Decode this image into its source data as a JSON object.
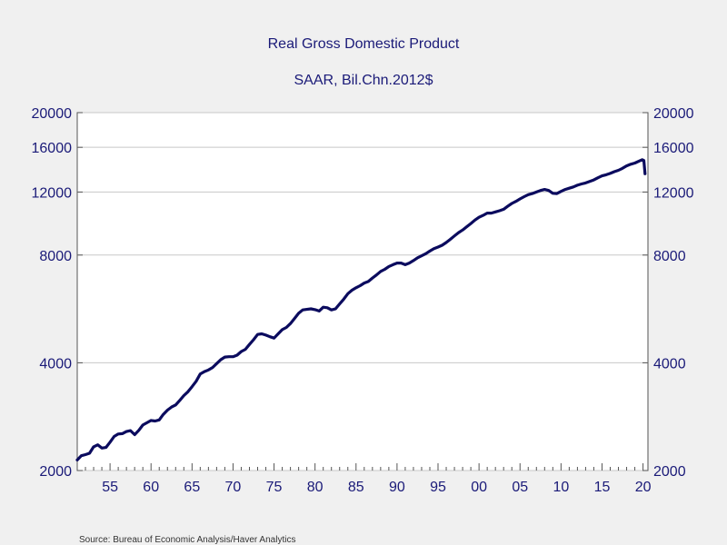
{
  "chart_data": {
    "type": "line",
    "title": "Real Gross Domestic Product",
    "subtitle": "SAAR, Bil.Chn.2012$",
    "source": "Source:  Bureau of Economic Analysis/Haver Analytics",
    "y_scale": "log",
    "ylim": [
      2000,
      20000
    ],
    "xlim": [
      1951.0,
      2020.6
    ],
    "y_ticks": [
      {
        "value": 2000,
        "label": "2000"
      },
      {
        "value": 4000,
        "label": "4000"
      },
      {
        "value": 8000,
        "label": "8000"
      },
      {
        "value": 12000,
        "label": "12000"
      },
      {
        "value": 16000,
        "label": "16000"
      },
      {
        "value": 20000,
        "label": "20000"
      }
    ],
    "x_ticks": [
      {
        "value": 1955,
        "label": "55"
      },
      {
        "value": 1960,
        "label": "60"
      },
      {
        "value": 1965,
        "label": "65"
      },
      {
        "value": 1970,
        "label": "70"
      },
      {
        "value": 1975,
        "label": "75"
      },
      {
        "value": 1980,
        "label": "80"
      },
      {
        "value": 1985,
        "label": "85"
      },
      {
        "value": 1990,
        "label": "90"
      },
      {
        "value": 1995,
        "label": "95"
      },
      {
        "value": 2000,
        "label": "00"
      },
      {
        "value": 2005,
        "label": "05"
      },
      {
        "value": 2010,
        "label": "10"
      },
      {
        "value": 2015,
        "label": "15"
      },
      {
        "value": 2020,
        "label": "20"
      }
    ],
    "grid": "horizontal",
    "series": [
      {
        "color": "#0b0b5e",
        "x": [
          1951.0,
          1951.5,
          1952.0,
          1952.5,
          1953.0,
          1953.5,
          1954.0,
          1954.5,
          1955.0,
          1955.5,
          1956.0,
          1956.5,
          1957.0,
          1957.5,
          1958.0,
          1958.5,
          1959.0,
          1959.5,
          1960.0,
          1960.5,
          1961.0,
          1961.5,
          1962.0,
          1962.5,
          1963.0,
          1963.5,
          1964.0,
          1964.5,
          1965.0,
          1965.5,
          1966.0,
          1966.5,
          1967.0,
          1967.5,
          1968.0,
          1968.5,
          1969.0,
          1969.5,
          1970.0,
          1970.5,
          1971.0,
          1971.5,
          1972.0,
          1972.5,
          1973.0,
          1973.5,
          1974.0,
          1974.5,
          1975.0,
          1975.5,
          1976.0,
          1976.5,
          1977.0,
          1977.5,
          1978.0,
          1978.5,
          1979.0,
          1979.5,
          1980.0,
          1980.5,
          1981.0,
          1981.5,
          1982.0,
          1982.5,
          1983.0,
          1983.5,
          1984.0,
          1984.5,
          1985.0,
          1985.5,
          1986.0,
          1986.5,
          1987.0,
          1987.5,
          1988.0,
          1988.5,
          1989.0,
          1989.5,
          1990.0,
          1990.5,
          1991.0,
          1991.5,
          1992.0,
          1992.5,
          1993.0,
          1993.5,
          1994.0,
          1994.5,
          1995.0,
          1995.5,
          1996.0,
          1996.5,
          1997.0,
          1997.5,
          1998.0,
          1998.5,
          1999.0,
          1999.5,
          2000.0,
          2000.5,
          2001.0,
          2001.5,
          2002.0,
          2002.5,
          2003.0,
          2003.5,
          2004.0,
          2004.5,
          2005.0,
          2005.5,
          2006.0,
          2006.5,
          2007.0,
          2007.5,
          2008.0,
          2008.5,
          2009.0,
          2009.5,
          2010.0,
          2010.5,
          2011.0,
          2011.5,
          2012.0,
          2012.5,
          2013.0,
          2013.5,
          2014.0,
          2014.5,
          2015.0,
          2015.5,
          2016.0,
          2016.5,
          2017.0,
          2017.5,
          2018.0,
          2018.5,
          2019.0,
          2019.5,
          2019.9,
          2020.1,
          2020.25
        ],
        "values": [
          2140,
          2200,
          2215,
          2235,
          2330,
          2360,
          2310,
          2320,
          2400,
          2490,
          2530,
          2535,
          2570,
          2585,
          2520,
          2590,
          2680,
          2720,
          2760,
          2750,
          2770,
          2870,
          2950,
          3010,
          3050,
          3140,
          3240,
          3320,
          3430,
          3550,
          3720,
          3780,
          3820,
          3880,
          3980,
          4080,
          4150,
          4160,
          4160,
          4200,
          4300,
          4360,
          4500,
          4640,
          4800,
          4820,
          4780,
          4730,
          4690,
          4820,
          4950,
          5020,
          5150,
          5320,
          5500,
          5620,
          5640,
          5660,
          5630,
          5580,
          5720,
          5700,
          5620,
          5660,
          5840,
          6020,
          6240,
          6380,
          6480,
          6570,
          6680,
          6750,
          6900,
          7040,
          7200,
          7300,
          7430,
          7520,
          7600,
          7600,
          7520,
          7600,
          7720,
          7860,
          7960,
          8070,
          8210,
          8340,
          8420,
          8520,
          8670,
          8850,
          9050,
          9240,
          9400,
          9600,
          9800,
          10020,
          10200,
          10330,
          10480,
          10480,
          10560,
          10640,
          10740,
          10950,
          11150,
          11300,
          11480,
          11650,
          11800,
          11880,
          12000,
          12120,
          12200,
          12120,
          11900,
          11880,
          12050,
          12200,
          12300,
          12400,
          12540,
          12640,
          12720,
          12840,
          12970,
          13150,
          13320,
          13410,
          13530,
          13680,
          13800,
          13980,
          14200,
          14350,
          14460,
          14640,
          14780,
          14700,
          13500
        ]
      }
    ]
  }
}
